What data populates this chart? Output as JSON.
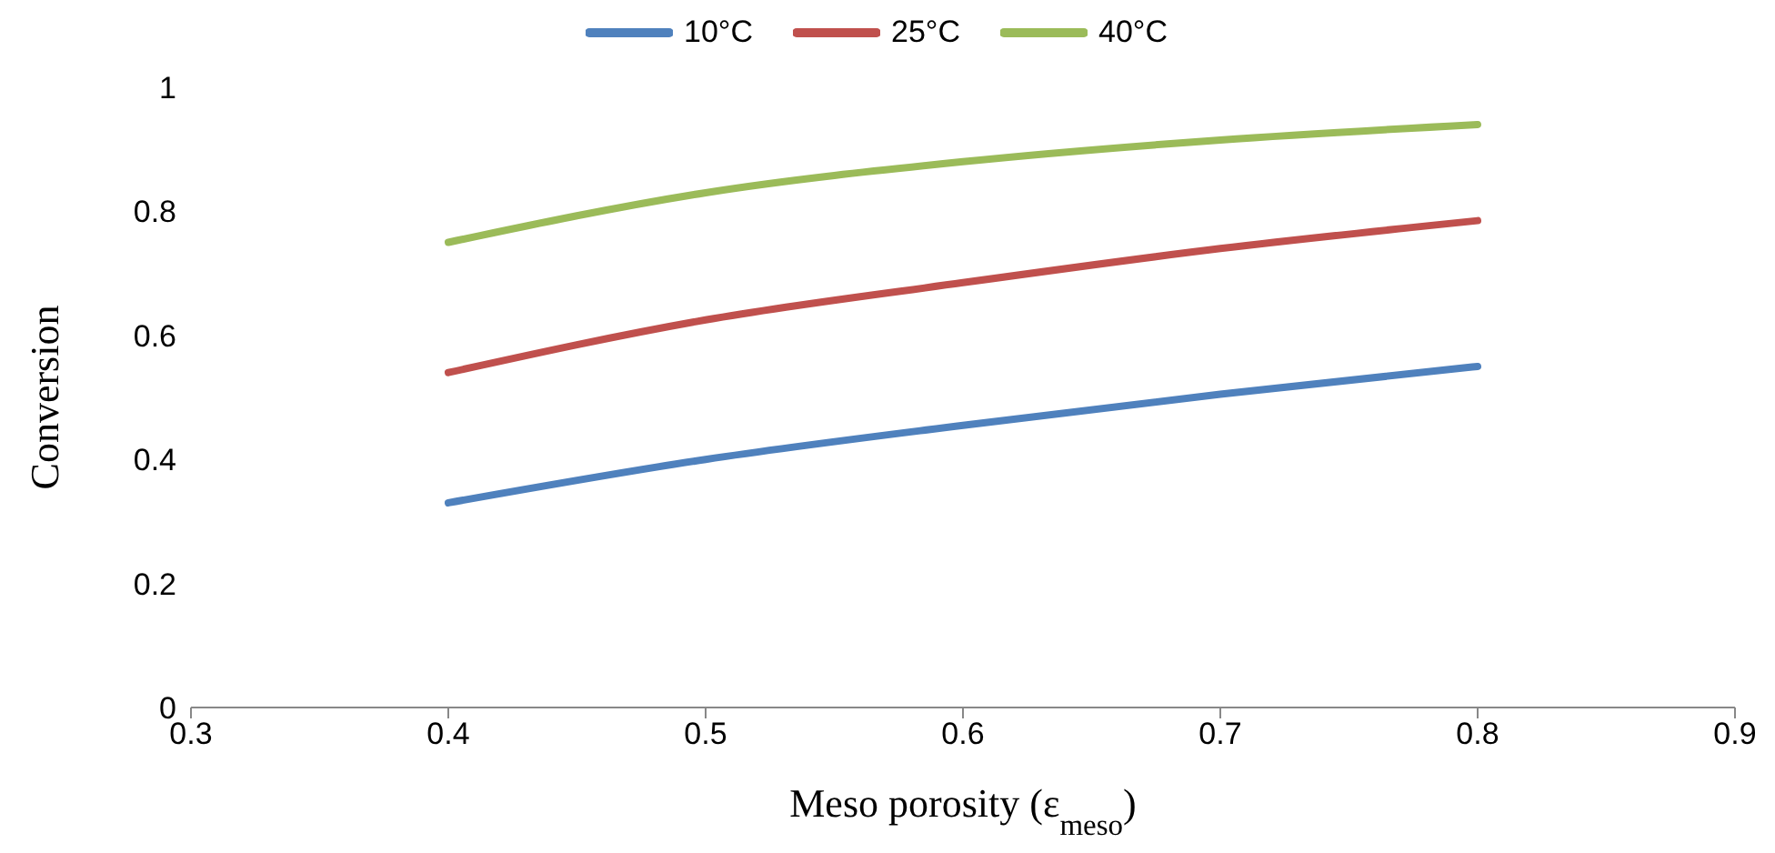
{
  "chart_data": {
    "type": "line",
    "xlabel": "Meso porosity (ε$_{meso}$)",
    "ylabel": "Conversion",
    "x": [
      0.4,
      0.5,
      0.6,
      0.7,
      0.8
    ],
    "series": [
      {
        "name": "10°C",
        "color": "#4f81bd",
        "values": [
          0.33,
          0.4,
          0.455,
          0.505,
          0.55
        ]
      },
      {
        "name": "25°C",
        "color": "#c0504d",
        "values": [
          0.54,
          0.625,
          0.685,
          0.74,
          0.785
        ]
      },
      {
        "name": "40°C",
        "color": "#9bbb59",
        "values": [
          0.75,
          0.83,
          0.88,
          0.915,
          0.94
        ]
      }
    ],
    "xlim": [
      0.3,
      0.9
    ],
    "xticks": [
      0.3,
      0.4,
      0.5,
      0.6,
      0.7,
      0.8,
      0.9
    ],
    "ylim": [
      0,
      1
    ],
    "yticks": [
      0,
      0.2,
      0.4,
      0.6,
      0.8,
      1
    ],
    "grid": false,
    "legend": "top",
    "marker": "none",
    "line_style": "solid"
  }
}
